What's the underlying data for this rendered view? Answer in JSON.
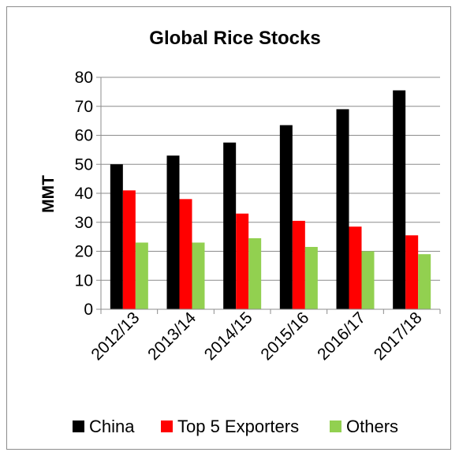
{
  "chart_data": {
    "type": "bar",
    "title": "Global Rice Stocks",
    "xlabel": "",
    "ylabel": "MMT",
    "ylim": [
      0,
      80
    ],
    "yticks": [
      0,
      10,
      20,
      30,
      40,
      50,
      60,
      70,
      80
    ],
    "grid": true,
    "legend": "bottom",
    "categories": [
      "2012/13",
      "2013/14",
      "2014/15",
      "2015/16",
      "2016/17",
      "2017/18"
    ],
    "series": [
      {
        "name": "China",
        "color": "#000000",
        "values": [
          50,
          53,
          57.5,
          63.5,
          69,
          75.5
        ]
      },
      {
        "name": "Top 5 Exporters",
        "color": "#ff0000",
        "values": [
          41,
          38,
          33,
          30.5,
          28.5,
          25.5
        ]
      },
      {
        "name": "Others",
        "color": "#92d050",
        "values": [
          23,
          23,
          24.5,
          21.5,
          20,
          19
        ]
      }
    ]
  }
}
